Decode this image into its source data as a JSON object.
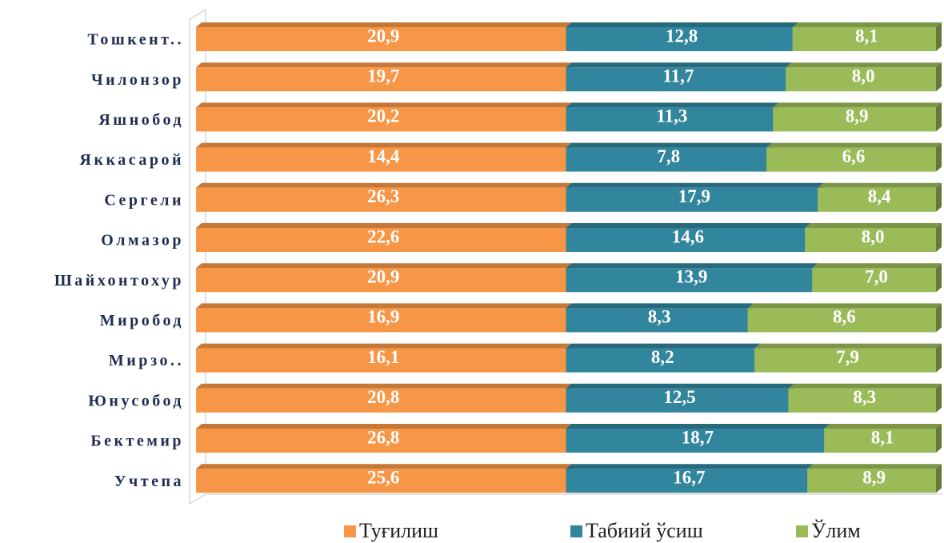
{
  "chart_data": {
    "type": "bar",
    "orientation": "horizontal",
    "stacked": "percent",
    "categories": [
      "Тошкент..",
      "Чилонзор",
      "Яшнобод",
      "Яккасарой",
      "Сергели",
      "Олмазор",
      "Шайхонтохур",
      "Миробод",
      "Мирзо..",
      "Юнусобод",
      "Бектемир",
      "Учтепа"
    ],
    "series": [
      {
        "name": "Туғилиш",
        "color": "#f79646",
        "values": [
          20.9,
          19.7,
          20.2,
          14.4,
          26.3,
          22.6,
          20.9,
          16.9,
          16.1,
          20.8,
          26.8,
          25.6
        ],
        "value_labels": [
          "20,9",
          "19,7",
          "20,2",
          "14,4",
          "26,3",
          "22,6",
          "20,9",
          "16,9",
          "16,1",
          "20,8",
          "26,8",
          "25,6"
        ]
      },
      {
        "name": "Табиий ўсиш",
        "color": "#31859c",
        "values": [
          12.8,
          11.7,
          11.3,
          7.8,
          17.9,
          14.6,
          13.9,
          8.3,
          8.2,
          12.5,
          18.7,
          16.7
        ],
        "value_labels": [
          "12,8",
          "11,7",
          "11,3",
          "7,8",
          "17,9",
          "14,6",
          "13,9",
          "8,3",
          "8,2",
          "12,5",
          "18,7",
          "16,7"
        ]
      },
      {
        "name": "Ўлим",
        "color": "#9bbb59",
        "values": [
          8.1,
          8.0,
          8.9,
          6.6,
          8.4,
          8.0,
          7.0,
          8.6,
          7.9,
          8.3,
          8.1,
          8.9
        ],
        "value_labels": [
          "8,1",
          "8,0",
          "8,9",
          "6,6",
          "8,4",
          "8,0",
          "7,0",
          "8,6",
          "7,9",
          "8,3",
          "8,1",
          "8,9"
        ]
      }
    ],
    "legend": "bottom"
  }
}
